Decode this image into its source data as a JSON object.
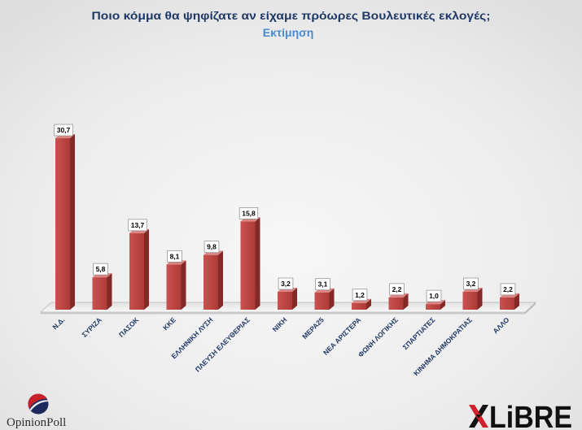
{
  "chart_data": {
    "type": "bar",
    "title": "Ποιο κόμμα θα ψηφίζατε αν είχαμε πρόωρες Βουλευτικές εκλογές;",
    "subtitle": "Εκτίμηση",
    "categories": [
      "Ν.Δ.",
      "ΣΥΡΙΖΑ",
      "ΠΑΣΟΚ",
      "ΚΚΕ",
      "ΕΛΛΗΝΙΚΗ ΛΥΣΗ",
      "ΠΛΕΥΣΗ ΕΛΕΥΘΕΡΙΑΣ",
      "ΝΙΚΗ",
      "ΜΕΡΑ25",
      "ΝΕΑ ΑΡΙΣΤΕΡΑ",
      "ΦΩΝΗ ΛΟΓΙΚΗΣ",
      "ΣΠΑΡΤΙΑΤΕΣ",
      "ΚΙΝΗΜΑ ΔΗΜΟΚΡΑΤΙΑΣ",
      "ΑΛΛΟ"
    ],
    "values": [
      30.7,
      5.8,
      13.7,
      8.1,
      9.8,
      15.8,
      3.2,
      3.1,
      1.2,
      2.2,
      1.0,
      3.2,
      2.2
    ],
    "value_labels": [
      "30,7",
      "5,8",
      "13,7",
      "8,1",
      "9,8",
      "15,8",
      "3,2",
      "3,1",
      "1,2",
      "2,2",
      "1,0",
      "3,2",
      "2,2"
    ],
    "xlabel": "",
    "ylabel": "",
    "ylim": [
      0,
      35
    ],
    "grid": false
  },
  "logos": {
    "opinionpoll": {
      "icon": "opinionpoll-globe-icon",
      "part1": "Opinion",
      "part2": "Poll"
    },
    "libre": {
      "icon": "libre-emblem-icon",
      "text": "LiBRE"
    }
  },
  "colors": {
    "title": "#1f3864",
    "subtitle": "#4a8bd0",
    "bar": "#c9524f",
    "bar_dark": "#ad3b38",
    "bar_side": "#832a27",
    "bar_top": "#dc8582",
    "value_text": "#000000",
    "value_box_border": "#8a8a8a",
    "category_label": "#1f3864",
    "opinionpoll_red": "#c8202a",
    "opinionpoll_navy": "#1e2a5e",
    "opinionpoll_text": "#2e2e2e",
    "libre_red": "#d0202a",
    "libre_black": "#111111"
  }
}
